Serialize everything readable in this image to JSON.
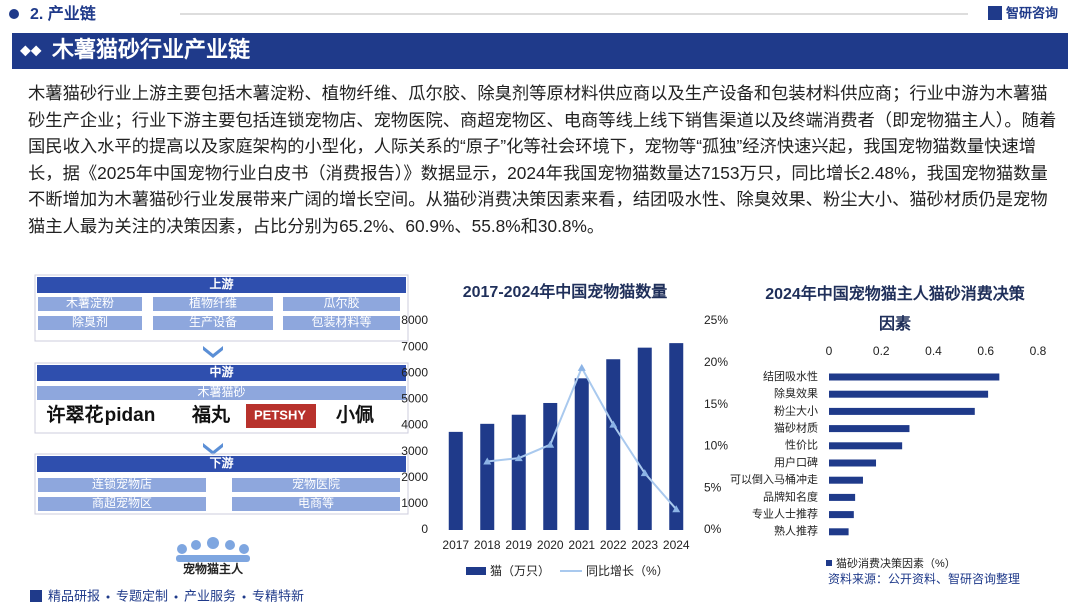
{
  "header": {
    "section": "2. 产业链",
    "brand": "智研咨询"
  },
  "title": "木薯猫砂行业产业链",
  "paragraph": "木薯猫砂行业上游主要包括木薯淀粉、植物纤维、瓜尔胶、除臭剂等原材料供应商以及生产设备和包装材料供应商；行业中游为木薯猫砂生产企业；行业下游主要包括连锁宠物店、宠物医院、商超宠物区、电商等线上线下销售渠道以及终端消费者（即宠物猫主人）。随着国民收入水平的提高以及家庭架构的小型化，人际关系的“原子”化等社会环境下，宠物等“孤独”经济快速兴起，我国宠物猫数量快速增长，据《2025年中国宠物行业白皮书（消费报告）》数据显示，2024年我国宠物猫数量达7153万只，同比增长2.48%，我国宠物猫数量不断增加为木薯猫砂行业发展带来广阔的增长空间。从猫砂消费决策因素来看，结团吸水性、除臭效果、粉尘大小、猫砂材质仍是宠物猫主人最为关注的决策因素，占比分别为65.2%、60.9%、55.8%和30.8%。",
  "diagram": {
    "upstream": {
      "label": "上游",
      "items": [
        "木薯淀粉",
        "植物纤维",
        "瓜尔胶",
        "除臭剂",
        "生产设备",
        "包装材料等"
      ]
    },
    "midstream": {
      "label": "中游",
      "product": "木薯猫砂",
      "brands": [
        "许翠花",
        "pidan",
        "福丸",
        "PETSHY",
        "小佩"
      ]
    },
    "downstream": {
      "label": "下游",
      "items": [
        "连锁宠物店",
        "宠物医院",
        "商超宠物区",
        "电商等"
      ]
    },
    "end": "宠物猫主人"
  },
  "chart_data": [
    {
      "type": "bar-line",
      "title": "2017-2024年中国宠物猫数量",
      "categories": [
        "2017",
        "2018",
        "2019",
        "2020",
        "2021",
        "2022",
        "2023",
        "2024"
      ],
      "series": [
        {
          "name": "猫（万只）",
          "color": "#1f3a8a",
          "values": [
            3756,
            4064,
            4412,
            4862,
            5806,
            6536,
            6980,
            7153
          ]
        },
        {
          "name": "同比增长（%）",
          "color": "#a9c9ee",
          "axis": "y2",
          "values": [
            null,
            8.2,
            8.6,
            10.2,
            19.4,
            12.6,
            6.8,
            2.48
          ]
        }
      ],
      "ylim": [
        0,
        8000
      ],
      "yticks": [
        0,
        1000,
        2000,
        3000,
        4000,
        5000,
        6000,
        7000,
        8000
      ],
      "y2lim": [
        0,
        25
      ],
      "y2ticks": [
        {
          "value": 0,
          "label": "0%"
        },
        {
          "value": 5,
          "label": "5%"
        },
        {
          "value": 10,
          "label": "10%"
        },
        {
          "value": 15,
          "label": "15%"
        },
        {
          "value": 20,
          "label": "20%"
        },
        {
          "value": 25,
          "label": "25%"
        }
      ]
    },
    {
      "type": "hbar",
      "title": "2024年中国宠物猫主人猫砂消费决策因素",
      "categories": [
        "结团吸水性",
        "除臭效果",
        "粉尘大小",
        "猫砂材质",
        "性价比",
        "用户口碑",
        "可以倒入马桶冲走",
        "品牌知名度",
        "专业人士推荐",
        "熟人推荐"
      ],
      "series": [
        {
          "name": "猫砂消费决策因素（%）",
          "color": "#1f3a8a",
          "values": [
            0.652,
            0.609,
            0.558,
            0.308,
            0.28,
            0.18,
            0.13,
            0.1,
            0.095,
            0.075
          ]
        }
      ],
      "xlim": [
        0,
        0.8
      ],
      "xticks": [
        0,
        0.2,
        0.4,
        0.6,
        0.8
      ],
      "source": "资料来源：公开资料、智研咨询整理"
    }
  ],
  "footer": [
    "精品研报",
    "专题定制",
    "产业服务",
    "专精特新"
  ]
}
